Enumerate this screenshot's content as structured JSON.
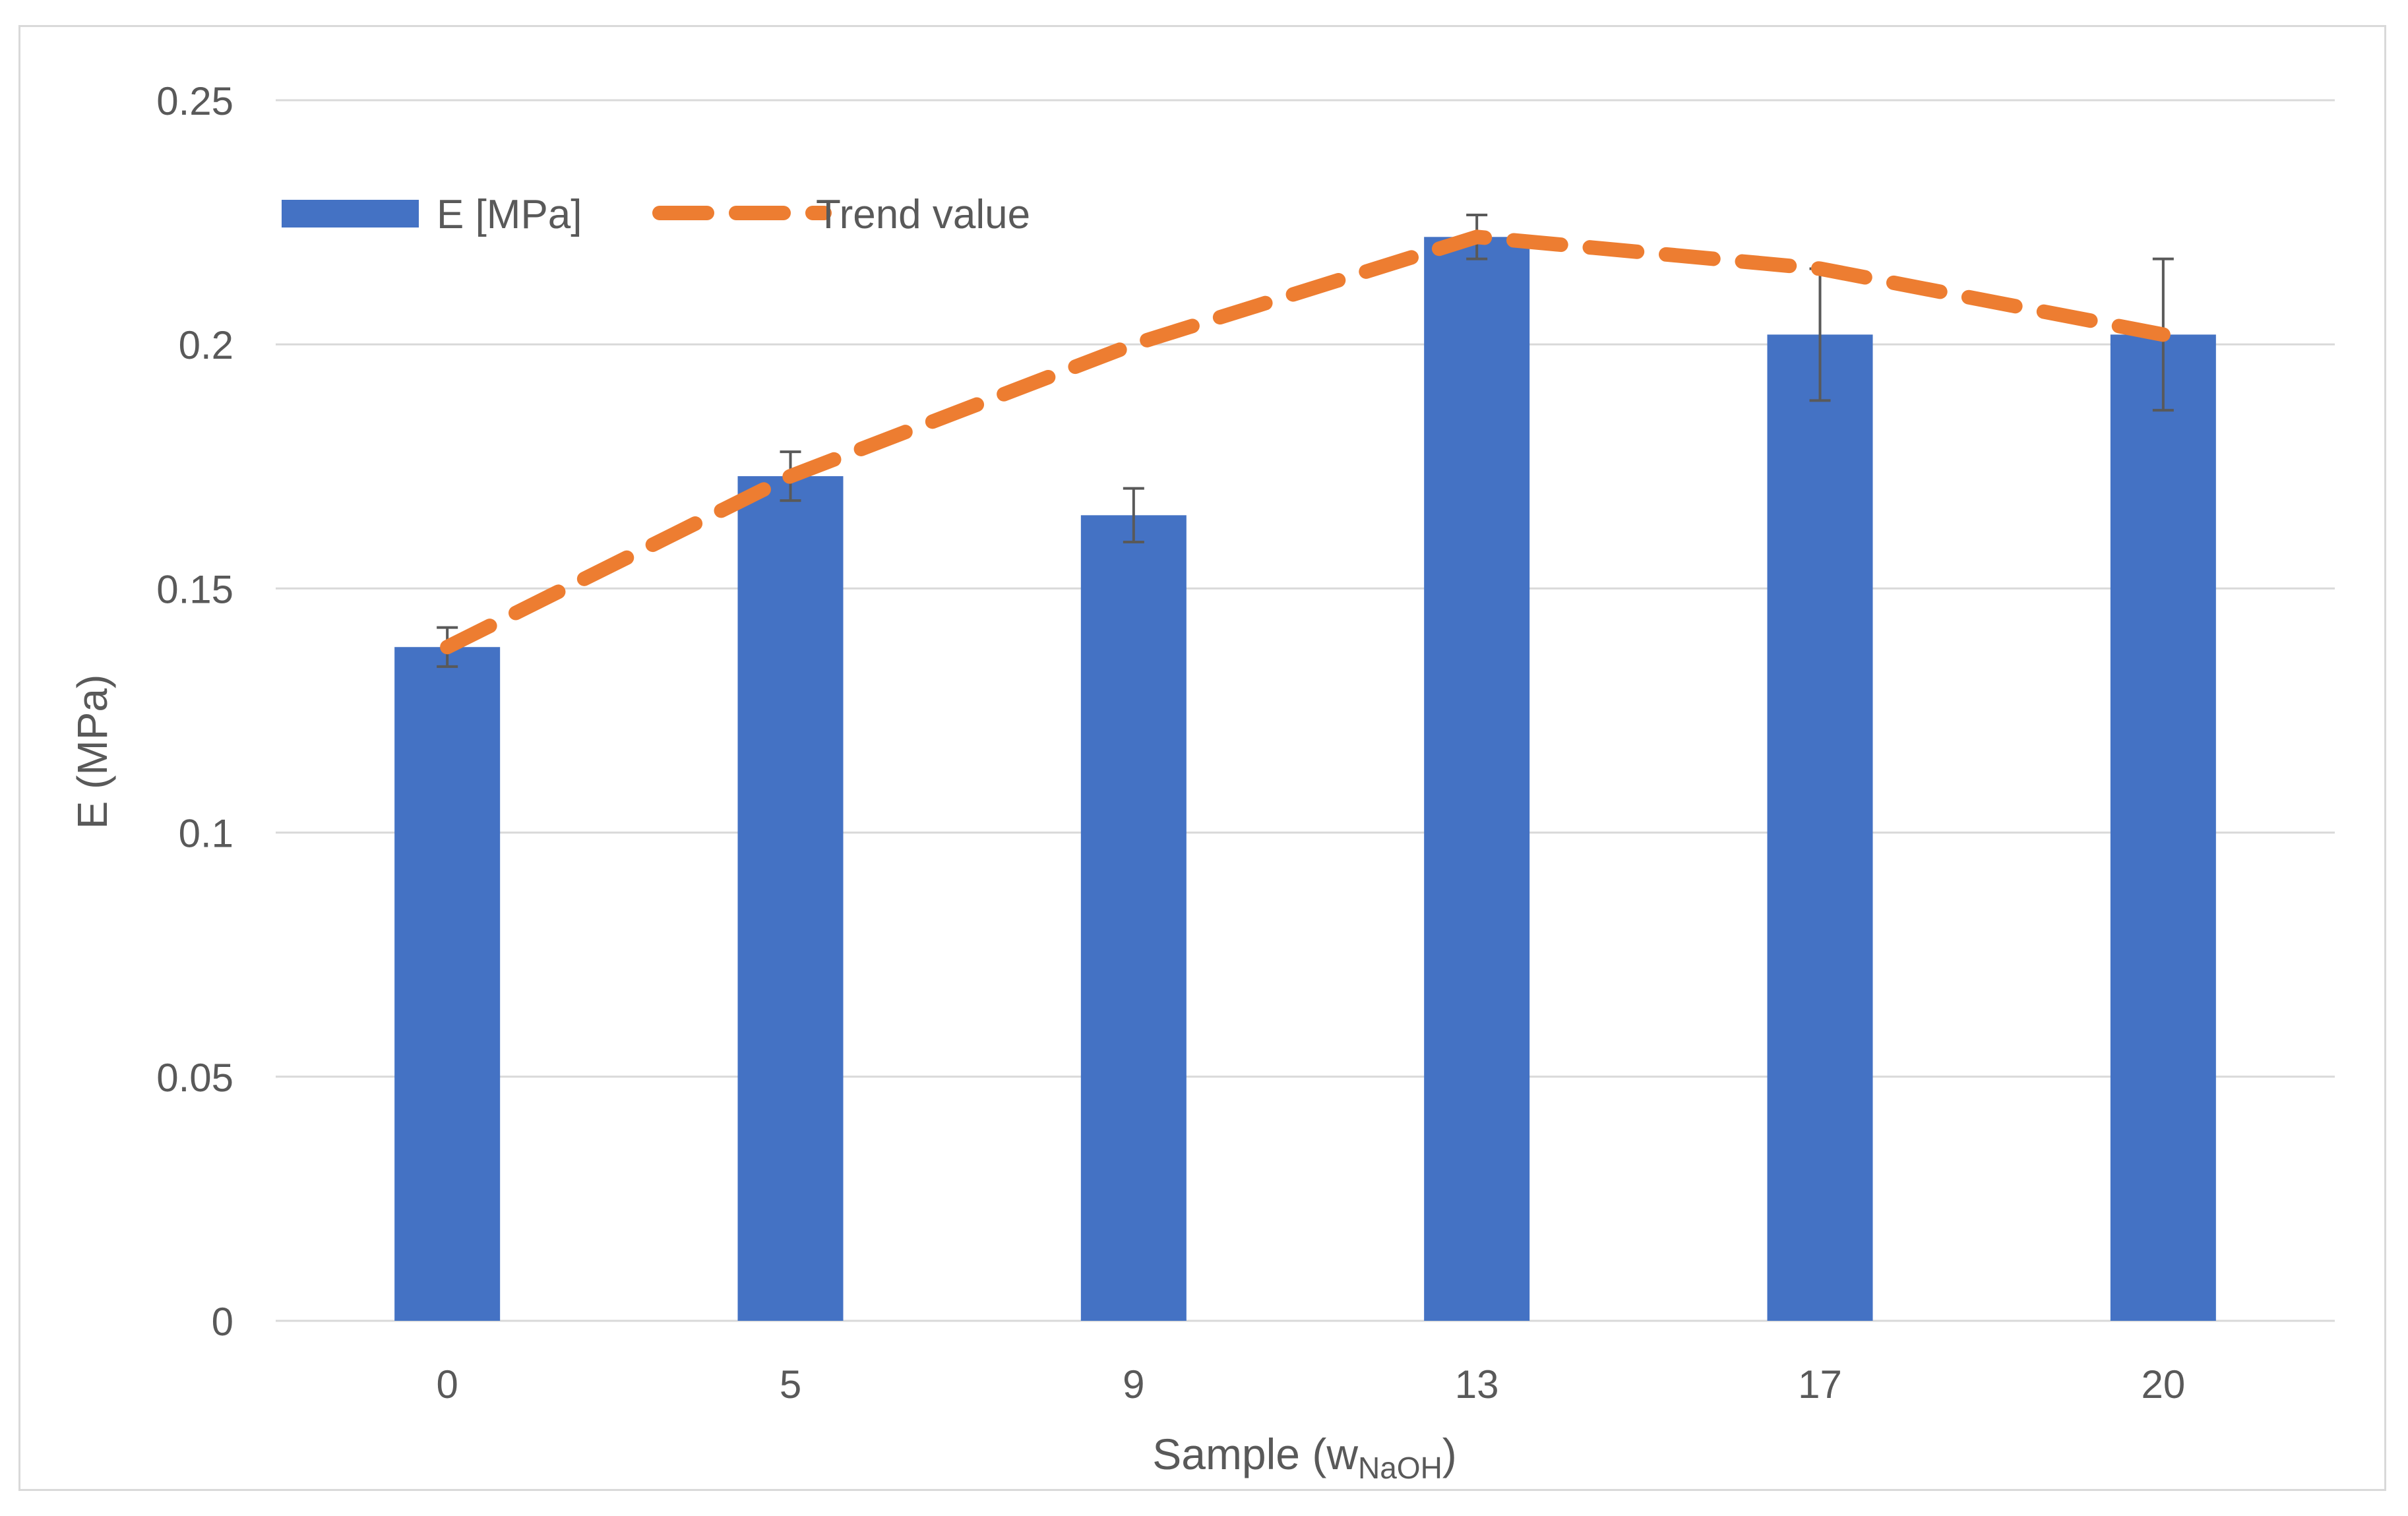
{
  "chart_data": {
    "type": "bar",
    "title": "",
    "xlabel": "Sample (w",
    "xlabel_subscript": "NaOH",
    "xlabel_suffix": ")",
    "ylabel": "E (MPa)",
    "ylim": [
      0,
      0.25
    ],
    "y_ticks": [
      0,
      0.05,
      0.1,
      0.15,
      0.2,
      0.25
    ],
    "y_tick_labels": [
      "0",
      "0.05",
      "0.1",
      "0.15",
      "0.2",
      "0.25"
    ],
    "categories": [
      "0",
      "5",
      "9",
      "13",
      "17",
      "20"
    ],
    "grid": true,
    "legend_position": "top-left",
    "series": [
      {
        "name": "E [MPa]",
        "kind": "bar",
        "color": "#4472c4",
        "values": [
          0.138,
          0.173,
          0.165,
          0.222,
          0.202,
          0.202
        ],
        "error": [
          0.004,
          0.005,
          0.0055,
          0.0045,
          0.0135,
          0.0155
        ]
      },
      {
        "name": "Trend value",
        "kind": "line",
        "style": "dashed",
        "color": "#ed7d31",
        "values": [
          0.138,
          0.173,
          0.2,
          0.222,
          0.2155,
          0.202
        ]
      }
    ]
  }
}
